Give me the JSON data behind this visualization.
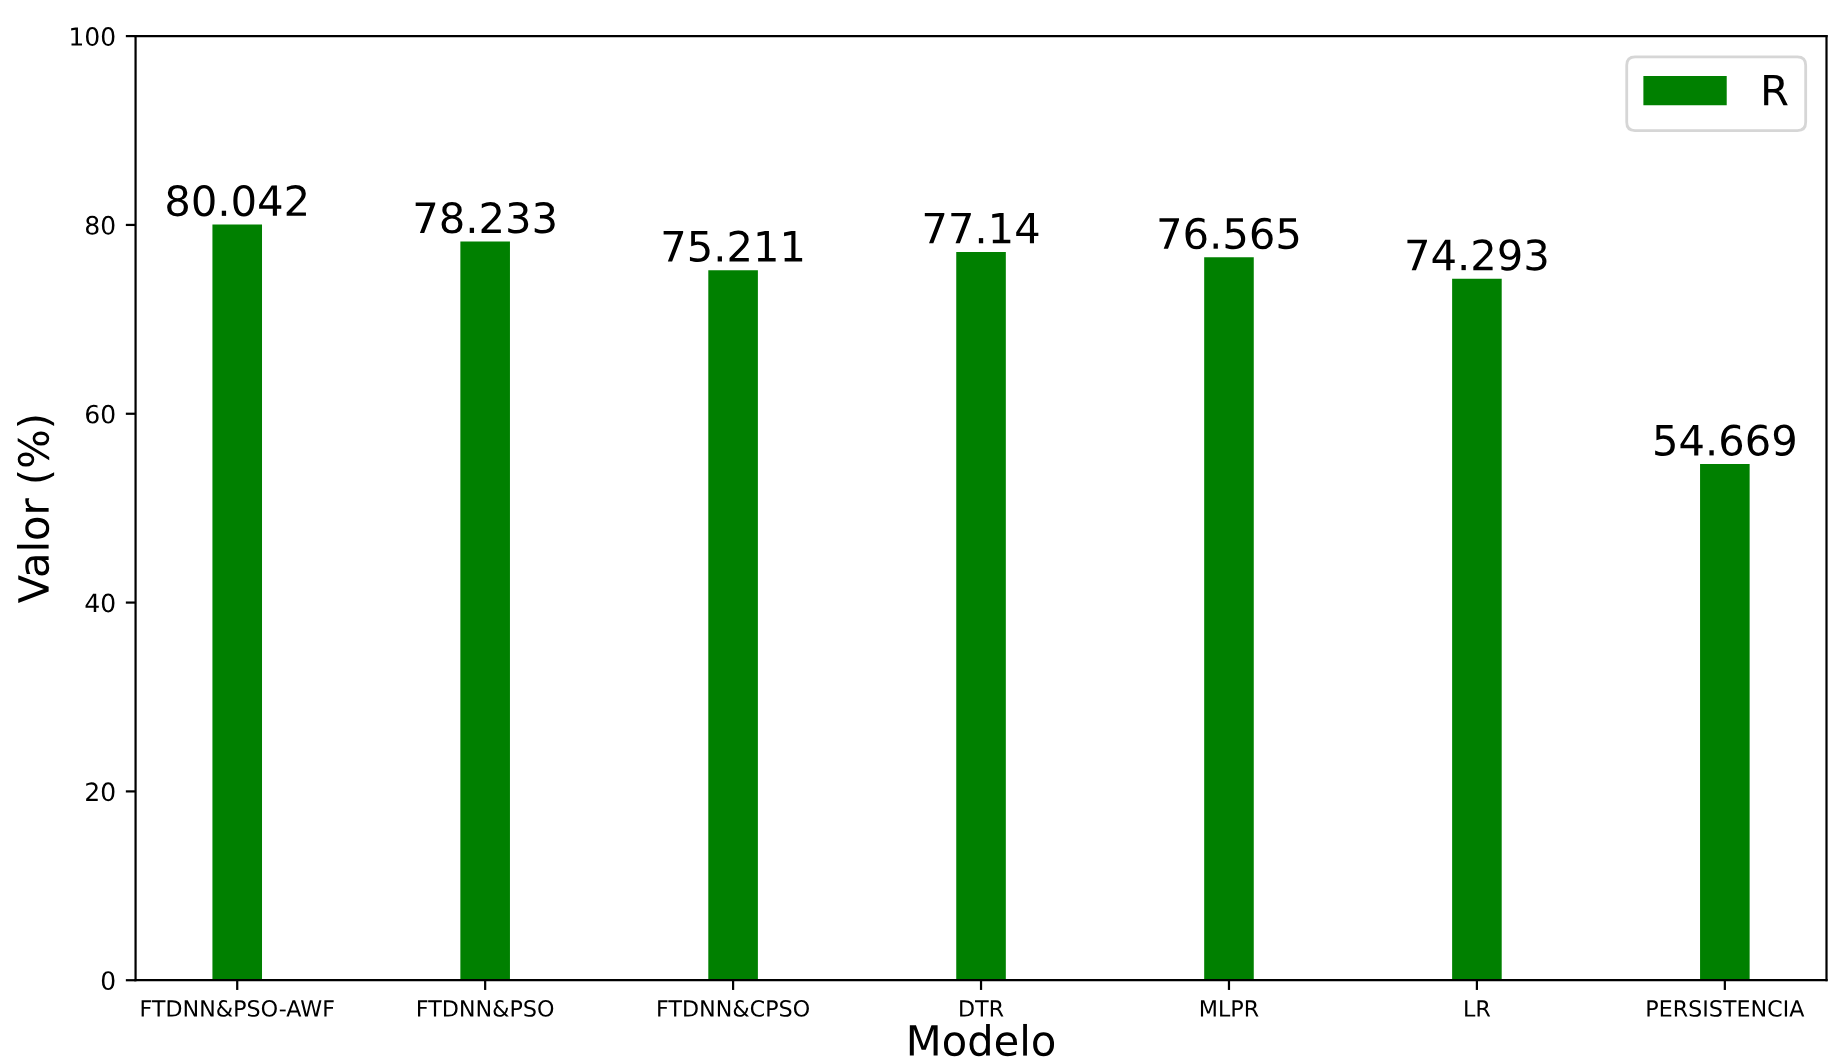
{
  "chart_data": {
    "type": "bar",
    "xlabel": "Modelo",
    "ylabel": "Valor (%)",
    "categories": [
      "FTDNN&PSO-AWF",
      "FTDNN&PSO",
      "FTDNN&CPSO",
      "DTR",
      "MLPR",
      "LR",
      "PERSISTENCIA"
    ],
    "series": [
      {
        "name": "R",
        "color": "#008000",
        "values": [
          80.042,
          78.233,
          75.211,
          77.14,
          76.565,
          74.293,
          54.669
        ]
      }
    ],
    "ylim": [
      0,
      100
    ],
    "yticks": [
      0,
      20,
      40,
      60,
      80,
      100
    ],
    "data_labels": true,
    "legend": "top right",
    "grid": false
  }
}
